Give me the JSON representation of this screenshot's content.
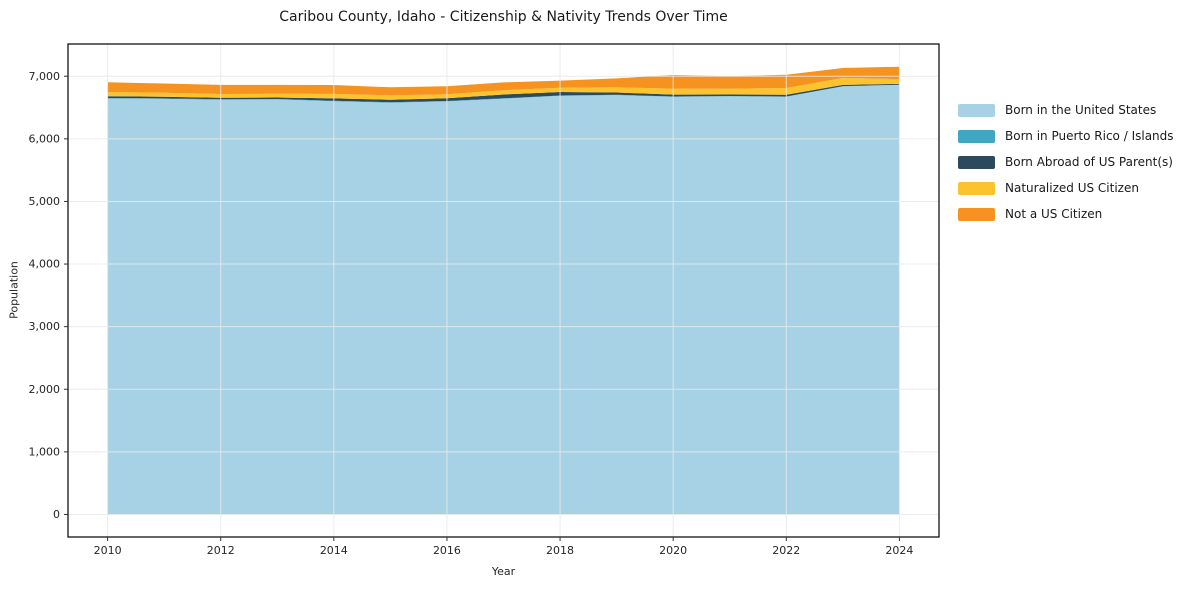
{
  "chart_data": {
    "type": "area",
    "stacked": true,
    "title": "Caribou County, Idaho - Citizenship & Nativity Trends Over Time",
    "xlabel": "Year",
    "ylabel": "Population",
    "x": [
      2010,
      2011,
      2012,
      2013,
      2014,
      2015,
      2016,
      2017,
      2018,
      2019,
      2020,
      2021,
      2022,
      2023,
      2024
    ],
    "series": [
      {
        "name": "Born in the United States",
        "color": "#a7d2e5",
        "values": [
          6645,
          6638,
          6625,
          6630,
          6600,
          6578,
          6598,
          6642,
          6688,
          6698,
          6672,
          6680,
          6672,
          6838,
          6862
        ]
      },
      {
        "name": "Born in Puerto Rico / Islands",
        "color": "#3fa7c3",
        "values": [
          8,
          8,
          8,
          6,
          8,
          8,
          6,
          5,
          5,
          5,
          5,
          4,
          4,
          4,
          3
        ]
      },
      {
        "name": "Born Abroad of US Parent(s)",
        "color": "#2b4a5c",
        "values": [
          28,
          25,
          22,
          25,
          38,
          40,
          45,
          62,
          55,
          38,
          30,
          25,
          28,
          20,
          15
        ]
      },
      {
        "name": "Naturalized US Citizen",
        "color": "#fdc32f",
        "values": [
          68,
          65,
          62,
          60,
          72,
          68,
          62,
          68,
          68,
          82,
          95,
          92,
          108,
          112,
          75
        ]
      },
      {
        "name": "Not a US Citizen",
        "color": "#f6921f",
        "values": [
          155,
          148,
          145,
          140,
          142,
          130,
          128,
          125,
          115,
          142,
          218,
          198,
          212,
          158,
          198
        ]
      }
    ],
    "xlim": [
      2009.3,
      2024.7
    ],
    "ylim": [
      -360,
      7515
    ],
    "xticks": [
      2010,
      2012,
      2014,
      2016,
      2018,
      2020,
      2022,
      2024
    ],
    "xticklabels": [
      "2010",
      "2012",
      "2014",
      "2016",
      "2018",
      "2020",
      "2022",
      "2024"
    ],
    "yticks": [
      0,
      1000,
      2000,
      3000,
      4000,
      5000,
      6000,
      7000
    ],
    "yticklabels": [
      "0",
      "1,000",
      "2,000",
      "3,000",
      "4,000",
      "5,000",
      "6,000",
      "7,000"
    ],
    "grid": true,
    "grid_color": "#e9e9e9",
    "spine_color": "#000000",
    "tick_color": "#333333",
    "tick_label_color": "#262626",
    "legend_position": "right"
  }
}
